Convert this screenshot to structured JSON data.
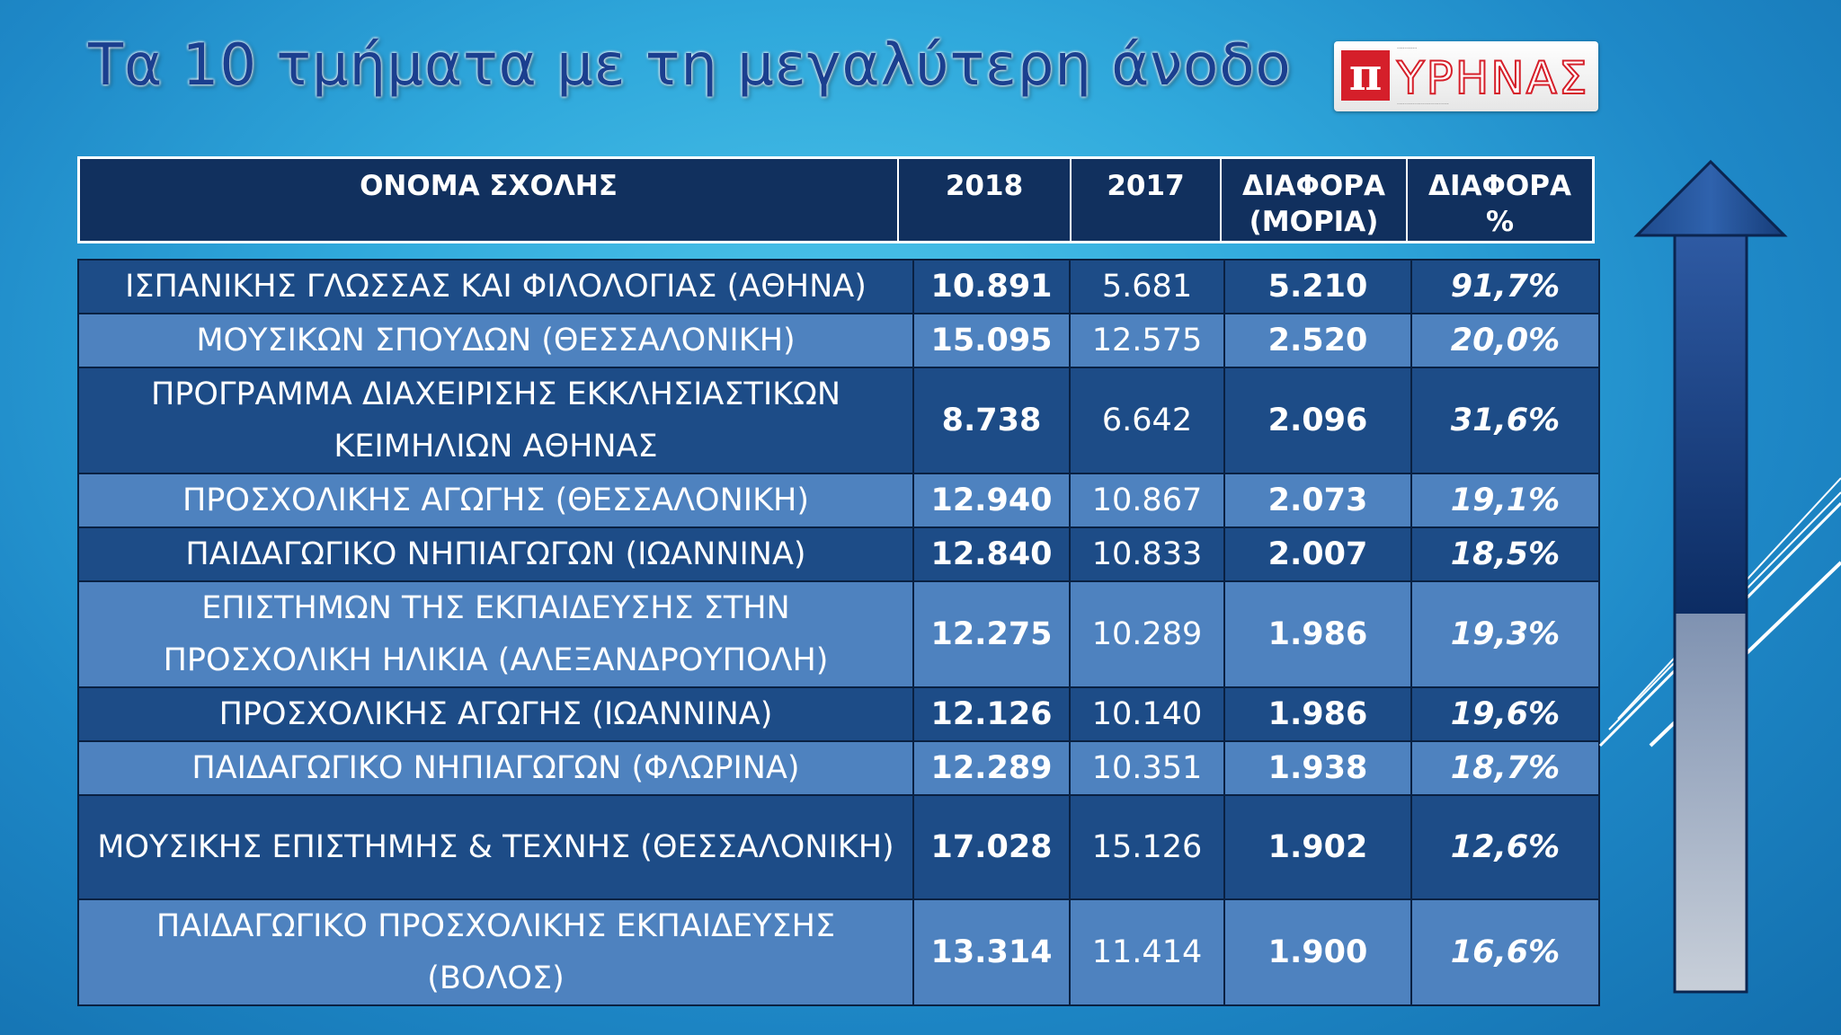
{
  "title": "Τα 10 τμήματα με τη μεγαλύτερη άνοδο",
  "logo": {
    "word": "ΥΡΗΝΑΣ"
  },
  "headers": [
    "ΟΝΟΜΑ ΣΧΟΛΗΣ",
    "2018",
    "2017",
    "ΔΙΑΦΟΡΑ\n(ΜΟΡΙΑ)",
    "ΔΙΑΦΟΡΑ\n%"
  ],
  "rows": [
    {
      "name": "ΙΣΠΑΝΙΚΗΣ ΓΛΩΣΣΑΣ ΚΑΙ ΦΙΛΟΛΟΓΙΑΣ (ΑΘΗΝΑ)",
      "y2018": "10.891",
      "y2017": "5.681",
      "diff": "5.210",
      "pct": "91,7%"
    },
    {
      "name": "ΜΟΥΣΙΚΩΝ ΣΠΟΥΔΩΝ (ΘΕΣΣΑΛΟΝΙΚΗ)",
      "y2018": "15.095",
      "y2017": "12.575",
      "diff": "2.520",
      "pct": "20,0%"
    },
    {
      "name": "ΠΡΟΓΡΑΜΜΑ ΔΙΑΧΕΙΡΙΣΗΣ ΕΚΚΛΗΣΙΑΣΤΙΚΩΝ ΚΕΙΜΗΛΙΩΝ ΑΘΗΝΑΣ",
      "y2018": "8.738",
      "y2017": "6.642",
      "diff": "2.096",
      "pct": "31,6%"
    },
    {
      "name": "ΠΡΟΣΧΟΛΙΚΗΣ ΑΓΩΓΗΣ (ΘΕΣΣΑΛΟΝΙΚΗ)",
      "y2018": "12.940",
      "y2017": "10.867",
      "diff": "2.073",
      "pct": "19,1%"
    },
    {
      "name": "ΠΑΙΔΑΓΩΓΙΚΟ ΝΗΠΙΑΓΩΓΩΝ (ΙΩΑΝΝΙΝΑ)",
      "y2018": "12.840",
      "y2017": "10.833",
      "diff": "2.007",
      "pct": "18,5%"
    },
    {
      "name": "ΕΠΙΣΤΗΜΩΝ ΤΗΣ ΕΚΠΑΙΔΕΥΣΗΣ ΣΤΗΝ ΠΡΟΣΧΟΛΙΚΗ ΗΛΙΚΙΑ (ΑΛΕΞΑΝΔΡΟΥΠΟΛΗ)",
      "y2018": "12.275",
      "y2017": "10.289",
      "diff": "1.986",
      "pct": "19,3%"
    },
    {
      "name": "ΠΡΟΣΧΟΛΙΚΗΣ ΑΓΩΓΗΣ (ΙΩΑΝΝΙΝΑ)",
      "y2018": "12.126",
      "y2017": "10.140",
      "diff": "1.986",
      "pct": "19,6%"
    },
    {
      "name": "ΠΑΙΔΑΓΩΓΙΚΟ ΝΗΠΙΑΓΩΓΩΝ (ΦΛΩΡΙΝΑ)",
      "y2018": "12.289",
      "y2017": "10.351",
      "diff": "1.938",
      "pct": "18,7%"
    },
    {
      "name": "ΜΟΥΣΙΚΗΣ ΕΠΙΣΤΗΜΗΣ & ΤΕΧΝΗΣ (ΘΕΣΣΑΛΟΝΙΚΗ)",
      "y2018": "17.028",
      "y2017": "15.126",
      "diff": "1.902",
      "pct": "12,6%"
    },
    {
      "name": "ΠΑΙΔΑΓΩΓΙΚΟ ΠΡΟΣΧΟΛΙΚΗΣ ΕΚΠΑΙΔΕΥΣΗΣ (ΒΟΛΟΣ)",
      "y2018": "13.314",
      "y2017": "11.414",
      "diff": "1.900",
      "pct": "16,6%"
    }
  ],
  "colors": {
    "header_bg": "#11305e",
    "row_dark": "#1d4c87",
    "row_light": "#4e82bf",
    "logo_red": "#d51f2a"
  },
  "icons": [
    "up-arrow-icon",
    "diagonal-stripes-decoration"
  ]
}
